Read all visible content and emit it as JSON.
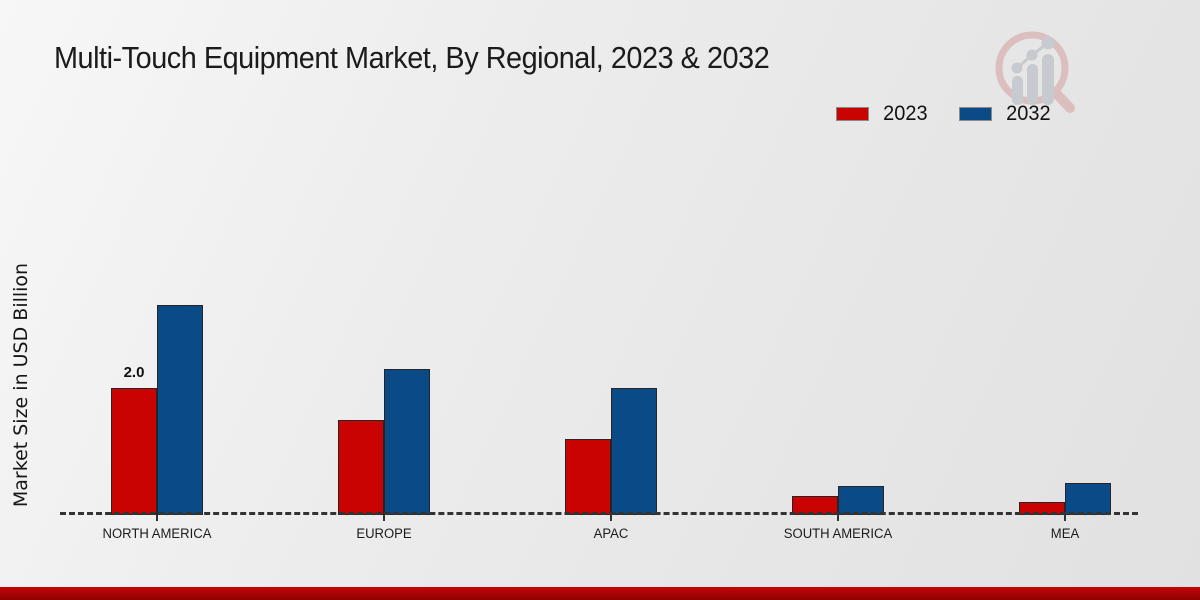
{
  "page": {
    "background_color": "#ebebeb",
    "footer_bar_color": "#b50303"
  },
  "chart": {
    "title": "Multi-Touch Equipment Market, By Regional, 2023 & 2032",
    "ylabel": "Market Size in USD Billion"
  },
  "chart_data": {
    "type": "bar",
    "title": "Multi-Touch Equipment Market, By Regional, 2023 & 2032",
    "xlabel": "",
    "ylabel": "Market Size in USD Billion",
    "categories": [
      "NORTH AMERICA",
      "EUROPE",
      "APAC",
      "SOUTH AMERICA",
      "MEA"
    ],
    "series": [
      {
        "name": "2023",
        "color": "#c90202",
        "values": [
          2.0,
          1.5,
          1.2,
          0.3,
          0.2
        ]
      },
      {
        "name": "2032",
        "color": "#094a87",
        "values": [
          3.3,
          2.3,
          2.0,
          0.45,
          0.5
        ]
      }
    ],
    "ylim": [
      0,
      3.5
    ],
    "grid": false,
    "legend_position": "top-right",
    "baseline_style": "dashed",
    "annotations": [
      {
        "text": "2.0",
        "series": "2023",
        "category": "NORTH AMERICA",
        "category_index": 0
      }
    ]
  },
  "watermark": {
    "icon": "magnifier-growth-chart-logo",
    "ring_color": "#ddbcbc",
    "bars_color": "#c6c9ce"
  }
}
